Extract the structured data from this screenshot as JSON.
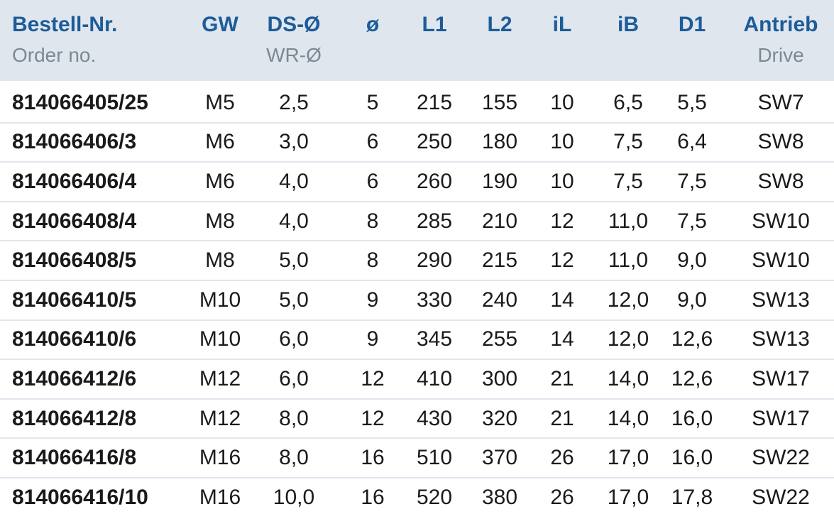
{
  "table": {
    "columns": [
      {
        "title": "Bestell-Nr.",
        "subtitle": "Order no."
      },
      {
        "title": "GW"
      },
      {
        "title": "DS-Ø",
        "subtitle": "WR-Ø"
      },
      {
        "title": "ø"
      },
      {
        "title": "L1"
      },
      {
        "title": "L2"
      },
      {
        "title": "iL"
      },
      {
        "title": "iB"
      },
      {
        "title": "D1"
      },
      {
        "title": "Antrieb",
        "subtitle": "Drive"
      }
    ],
    "rows": [
      [
        "814066405/25",
        "M5",
        "2,5",
        "5",
        "215",
        "155",
        "10",
        "6,5",
        "5,5",
        "SW7"
      ],
      [
        "814066406/3",
        "M6",
        "3,0",
        "6",
        "250",
        "180",
        "10",
        "7,5",
        "6,4",
        "SW8"
      ],
      [
        "814066406/4",
        "M6",
        "4,0",
        "6",
        "260",
        "190",
        "10",
        "7,5",
        "7,5",
        "SW8"
      ],
      [
        "814066408/4",
        "M8",
        "4,0",
        "8",
        "285",
        "210",
        "12",
        "11,0",
        "7,5",
        "SW10"
      ],
      [
        "814066408/5",
        "M8",
        "5,0",
        "8",
        "290",
        "215",
        "12",
        "11,0",
        "9,0",
        "SW10"
      ],
      [
        "814066410/5",
        "M10",
        "5,0",
        "9",
        "330",
        "240",
        "14",
        "12,0",
        "9,0",
        "SW13"
      ],
      [
        "814066410/6",
        "M10",
        "6,0",
        "9",
        "345",
        "255",
        "14",
        "12,0",
        "12,6",
        "SW13"
      ],
      [
        "814066412/6",
        "M12",
        "6,0",
        "12",
        "410",
        "300",
        "21",
        "14,0",
        "12,6",
        "SW17"
      ],
      [
        "814066412/8",
        "M12",
        "8,0",
        "12",
        "430",
        "320",
        "21",
        "14,0",
        "16,0",
        "SW17"
      ],
      [
        "814066416/8",
        "M16",
        "8,0",
        "16",
        "510",
        "370",
        "26",
        "17,0",
        "16,0",
        "SW22"
      ],
      [
        "814066416/10",
        "M16",
        "10,0",
        "16",
        "520",
        "380",
        "26",
        "17,0",
        "17,8",
        "SW22"
      ]
    ]
  }
}
